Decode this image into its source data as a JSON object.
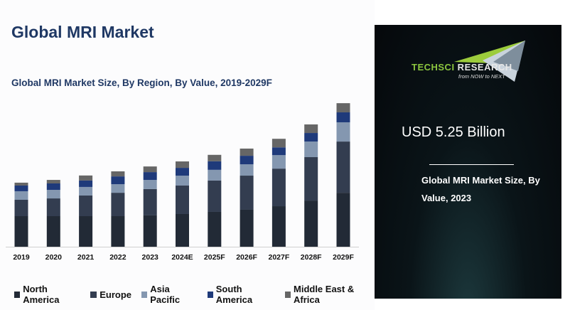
{
  "header": {
    "title": "Global MRI Market"
  },
  "chart_data": {
    "type": "bar",
    "stacked": true,
    "title": "Global MRI Market Size, By Region, By Value, 2019-2029F",
    "xlabel": "",
    "ylabel": "",
    "unit": "USD Billion",
    "categories": [
      "2019",
      "2020",
      "2021",
      "2022",
      "2023",
      "2024E",
      "2025F",
      "2026F",
      "2027F",
      "2028F",
      "2029F"
    ],
    "series": [
      {
        "name": "North America",
        "color": "#222a36",
        "values": [
          2.0,
          2.0,
          2.0,
          2.0,
          2.05,
          2.14,
          2.28,
          2.42,
          2.65,
          3.02,
          3.53
        ]
      },
      {
        "name": "Europe",
        "color": "#333d50",
        "values": [
          1.07,
          1.16,
          1.35,
          1.53,
          1.72,
          1.86,
          2.05,
          2.23,
          2.46,
          2.84,
          3.35
        ]
      },
      {
        "name": "Asia Pacific",
        "color": "#8497b0",
        "values": [
          0.56,
          0.56,
          0.56,
          0.56,
          0.6,
          0.65,
          0.7,
          0.74,
          0.88,
          1.02,
          1.26
        ]
      },
      {
        "name": "South America",
        "color": "#1f3a7a",
        "values": [
          0.37,
          0.42,
          0.42,
          0.51,
          0.51,
          0.51,
          0.56,
          0.56,
          0.51,
          0.56,
          0.65
        ]
      },
      {
        "name": "Middle East & Africa",
        "color": "#666666",
        "values": [
          0.19,
          0.23,
          0.33,
          0.33,
          0.37,
          0.42,
          0.42,
          0.47,
          0.56,
          0.56,
          0.6
        ]
      }
    ],
    "ylim": [
      0,
      10
    ],
    "grid": false,
    "legend": "bottom"
  },
  "panel": {
    "logo_main_green": "TECHSCI",
    "logo_main_white": " RESEARCH",
    "logo_tagline": "from NOW to NEXT",
    "value": "USD 5.25 Billion",
    "description": "Global MRI Market Size, By Value, 2023"
  }
}
